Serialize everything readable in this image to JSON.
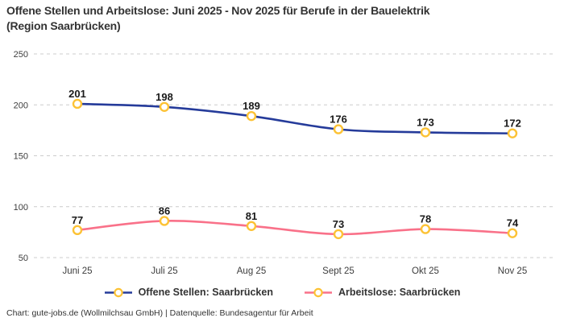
{
  "title": "Offene Stellen und Arbeitslose: Juni 2025 - Nov 2025 für Berufe in der Bauelektrik\n(Region Saarbrücken)",
  "footer": "Chart: gute-jobs.de (Wollmilchsau GmbH) | Datenquelle: Bundesagentur für Arbeit",
  "colors": {
    "background": "#ffffff",
    "title_text": "#333333",
    "axis_text": "#3d3d3d",
    "data_label_text": "#1a1a1a",
    "gridline": "#cccccc",
    "marker_ring": "#fcc235",
    "marker_fill": "#ffffff",
    "series_offene_stellen": "#253b9a",
    "series_arbeitslose": "#f97189",
    "footer_text": "#333333"
  },
  "chart_data": {
    "type": "line",
    "title": "Offene Stellen und Arbeitslose: Juni 2025 - Nov 2025 für Berufe in der Bauelektrik (Region Saarbrücken)",
    "xlabel": "",
    "ylabel": "",
    "categories": [
      "Juni 25",
      "Juli 25",
      "Aug 25",
      "Sept 25",
      "Okt 25",
      "Nov 25"
    ],
    "series": [
      {
        "name": "Offene Stellen: Saarbrücken",
        "color": "#253b9a",
        "values": [
          201,
          198,
          189,
          176,
          173,
          172
        ]
      },
      {
        "name": "Arbeitslose: Saarbrücken",
        "color": "#f97189",
        "values": [
          77,
          86,
          81,
          73,
          78,
          74
        ]
      }
    ],
    "yticks": [
      50,
      100,
      150,
      200,
      250
    ],
    "ylim": [
      50,
      250
    ],
    "grid": "horizontal-dashed",
    "legend_position": "bottom",
    "data_labels": true,
    "marker": {
      "shape": "ring",
      "fill": "#ffffff",
      "stroke": "#fcc235"
    }
  }
}
